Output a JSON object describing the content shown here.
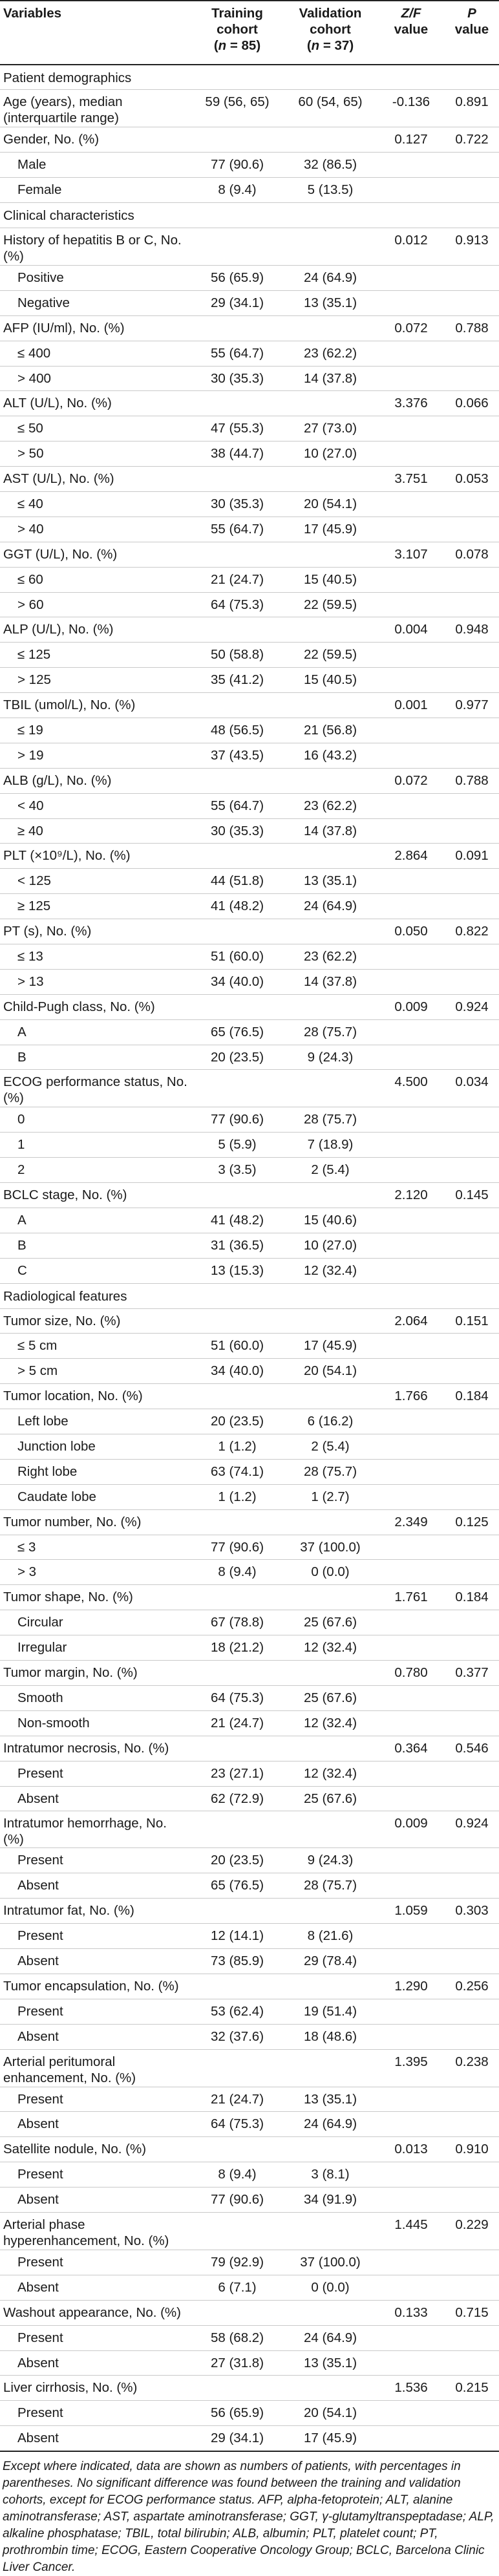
{
  "header": {
    "variables": "Variables",
    "training": [
      "Training",
      "cohort",
      "(n = 85)"
    ],
    "validation": [
      "Validation",
      "cohort",
      "(n = 37)"
    ],
    "zf": [
      "Z/F",
      "value"
    ],
    "p": [
      "P",
      "value"
    ]
  },
  "rows": [
    {
      "k": "sec",
      "label": "Patient demographics"
    },
    {
      "k": "var",
      "label": "Age (years), median (interquartile range)",
      "t": "59 (56, 65)",
      "v": "60 (54, 65)",
      "z": "-0.136",
      "p": "0.891",
      "tall": true
    },
    {
      "k": "var",
      "label": "Gender, No. (%)",
      "z": "0.127",
      "p": "0.722"
    },
    {
      "k": "sub",
      "label": "Male",
      "t": "77 (90.6)",
      "v": "32 (86.5)"
    },
    {
      "k": "sub",
      "label": "Female",
      "t": "8 (9.4)",
      "v": "5 (13.5)"
    },
    {
      "k": "sec",
      "label": "Clinical characteristics"
    },
    {
      "k": "var",
      "label": "History of hepatitis B or C, No. (%)",
      "z": "0.012",
      "p": "0.913",
      "tall": true
    },
    {
      "k": "sub",
      "label": "Positive",
      "t": "56 (65.9)",
      "v": "24 (64.9)"
    },
    {
      "k": "sub",
      "label": "Negative",
      "t": "29 (34.1)",
      "v": "13 (35.1)"
    },
    {
      "k": "var",
      "label": "AFP (IU/ml), No. (%)",
      "z": "0.072",
      "p": "0.788"
    },
    {
      "k": "sub",
      "label": "≤ 400",
      "t": "55 (64.7)",
      "v": "23 (62.2)"
    },
    {
      "k": "sub",
      "label": "> 400",
      "t": "30 (35.3)",
      "v": "14 (37.8)"
    },
    {
      "k": "var",
      "label": "ALT (U/L), No. (%)",
      "z": "3.376",
      "p": "0.066"
    },
    {
      "k": "sub",
      "label": "≤ 50",
      "t": "47 (55.3)",
      "v": "27 (73.0)"
    },
    {
      "k": "sub",
      "label": "> 50",
      "t": "38 (44.7)",
      "v": "10 (27.0)"
    },
    {
      "k": "var",
      "label": "AST (U/L), No. (%)",
      "z": "3.751",
      "p": "0.053"
    },
    {
      "k": "sub",
      "label": "≤ 40",
      "t": "30 (35.3)",
      "v": "20 (54.1)"
    },
    {
      "k": "sub",
      "label": "> 40",
      "t": "55 (64.7)",
      "v": "17 (45.9)"
    },
    {
      "k": "var",
      "label": "GGT (U/L), No. (%)",
      "z": "3.107",
      "p": "0.078"
    },
    {
      "k": "sub",
      "label": "≤ 60",
      "t": "21 (24.7)",
      "v": "15 (40.5)"
    },
    {
      "k": "sub",
      "label": "> 60",
      "t": "64 (75.3)",
      "v": "22 (59.5)"
    },
    {
      "k": "var",
      "label": "ALP (U/L), No. (%)",
      "z": "0.004",
      "p": "0.948"
    },
    {
      "k": "sub",
      "label": "≤ 125",
      "t": "50 (58.8)",
      "v": "22 (59.5)"
    },
    {
      "k": "sub",
      "label": "> 125",
      "t": "35 (41.2)",
      "v": "15 (40.5)"
    },
    {
      "k": "var",
      "label": "TBIL (umol/L), No. (%)",
      "z": "0.001",
      "p": "0.977"
    },
    {
      "k": "sub",
      "label": "≤ 19",
      "t": "48 (56.5)",
      "v": "21 (56.8)"
    },
    {
      "k": "sub",
      "label": "> 19",
      "t": "37 (43.5)",
      "v": "16 (43.2)"
    },
    {
      "k": "var",
      "label": "ALB (g/L), No. (%)",
      "z": "0.072",
      "p": "0.788"
    },
    {
      "k": "sub",
      "label": "< 40",
      "t": "55 (64.7)",
      "v": "23 (62.2)"
    },
    {
      "k": "sub",
      "label": "≥ 40",
      "t": "30 (35.3)",
      "v": "14 (37.8)"
    },
    {
      "k": "var",
      "label": "PLT (×10⁹/L), No. (%)",
      "z": "2.864",
      "p": "0.091"
    },
    {
      "k": "sub",
      "label": "< 125",
      "t": "44 (51.8)",
      "v": "13 (35.1)"
    },
    {
      "k": "sub",
      "label": "≥ 125",
      "t": "41 (48.2)",
      "v": "24 (64.9)"
    },
    {
      "k": "var",
      "label": "PT (s), No. (%)",
      "z": "0.050",
      "p": "0.822"
    },
    {
      "k": "sub",
      "label": "≤ 13",
      "t": "51 (60.0)",
      "v": "23 (62.2)"
    },
    {
      "k": "sub",
      "label": "> 13",
      "t": "34 (40.0)",
      "v": "14 (37.8)"
    },
    {
      "k": "var",
      "label": "Child-Pugh class, No. (%)",
      "z": "0.009",
      "p": "0.924"
    },
    {
      "k": "sub",
      "label": "A",
      "t": "65 (76.5)",
      "v": "28 (75.7)"
    },
    {
      "k": "sub",
      "label": "B",
      "t": "20 (23.5)",
      "v": "9 (24.3)"
    },
    {
      "k": "var",
      "label": "ECOG performance status, No. (%)",
      "z": "4.500",
      "p": "0.034",
      "tall": true
    },
    {
      "k": "sub",
      "label": "0",
      "t": "77 (90.6)",
      "v": "28 (75.7)"
    },
    {
      "k": "sub",
      "label": "1",
      "t": "5 (5.9)",
      "v": "7 (18.9)"
    },
    {
      "k": "sub",
      "label": "2",
      "t": "3 (3.5)",
      "v": "2 (5.4)"
    },
    {
      "k": "var",
      "label": "BCLC stage, No. (%)",
      "z": "2.120",
      "p": "0.145"
    },
    {
      "k": "sub",
      "label": "A",
      "t": "41 (48.2)",
      "v": "15 (40.6)"
    },
    {
      "k": "sub",
      "label": "B",
      "t": "31 (36.5)",
      "v": "10 (27.0)"
    },
    {
      "k": "sub",
      "label": "C",
      "t": "13 (15.3)",
      "v": "12 (32.4)"
    },
    {
      "k": "sec",
      "label": "Radiological features"
    },
    {
      "k": "var",
      "label": "Tumor size, No. (%)",
      "z": "2.064",
      "p": "0.151"
    },
    {
      "k": "sub",
      "label": "≤ 5 cm",
      "t": "51 (60.0)",
      "v": "17 (45.9)"
    },
    {
      "k": "sub",
      "label": "> 5 cm",
      "t": "34 (40.0)",
      "v": "20 (54.1)"
    },
    {
      "k": "var",
      "label": "Tumor location, No. (%)",
      "z": "1.766",
      "p": "0.184"
    },
    {
      "k": "sub",
      "label": "Left lobe",
      "t": "20 (23.5)",
      "v": "6 (16.2)"
    },
    {
      "k": "sub",
      "label": "Junction lobe",
      "t": "1 (1.2)",
      "v": "2 (5.4)"
    },
    {
      "k": "sub",
      "label": "Right lobe",
      "t": "63 (74.1)",
      "v": "28 (75.7)"
    },
    {
      "k": "sub",
      "label": "Caudate lobe",
      "t": "1 (1.2)",
      "v": "1 (2.7)"
    },
    {
      "k": "var",
      "label": "Tumor number, No. (%)",
      "z": "2.349",
      "p": "0.125"
    },
    {
      "k": "sub",
      "label": "≤ 3",
      "t": "77 (90.6)",
      "v": "37 (100.0)"
    },
    {
      "k": "sub",
      "label": "> 3",
      "t": "8 (9.4)",
      "v": "0 (0.0)"
    },
    {
      "k": "var",
      "label": "Tumor shape, No. (%)",
      "z": "1.761",
      "p": "0.184"
    },
    {
      "k": "sub",
      "label": "Circular",
      "t": "67 (78.8)",
      "v": "25 (67.6)"
    },
    {
      "k": "sub",
      "label": "Irregular",
      "t": "18 (21.2)",
      "v": "12 (32.4)"
    },
    {
      "k": "var",
      "label": "Tumor margin, No. (%)",
      "z": "0.780",
      "p": "0.377"
    },
    {
      "k": "sub",
      "label": "Smooth",
      "t": "64 (75.3)",
      "v": "25 (67.6)"
    },
    {
      "k": "sub",
      "label": "Non-smooth",
      "t": "21 (24.7)",
      "v": "12 (32.4)"
    },
    {
      "k": "var",
      "label": "Intratumor necrosis, No. (%)",
      "z": "0.364",
      "p": "0.546"
    },
    {
      "k": "sub",
      "label": "Present",
      "t": "23 (27.1)",
      "v": "12 (32.4)"
    },
    {
      "k": "sub",
      "label": "Absent",
      "t": "62 (72.9)",
      "v": "25 (67.6)"
    },
    {
      "k": "var",
      "label": "Intratumor hemorrhage, No. (%)",
      "z": "0.009",
      "p": "0.924"
    },
    {
      "k": "sub",
      "label": "Present",
      "t": "20 (23.5)",
      "v": "9 (24.3)"
    },
    {
      "k": "sub",
      "label": "Absent",
      "t": "65 (76.5)",
      "v": "28 (75.7)"
    },
    {
      "k": "var",
      "label": "Intratumor fat, No. (%)",
      "z": "1.059",
      "p": "0.303"
    },
    {
      "k": "sub",
      "label": "Present",
      "t": "12 (14.1)",
      "v": "8 (21.6)"
    },
    {
      "k": "sub",
      "label": "Absent",
      "t": "73 (85.9)",
      "v": "29 (78.4)"
    },
    {
      "k": "var",
      "label": "Tumor encapsulation, No. (%)",
      "z": "1.290",
      "p": "0.256"
    },
    {
      "k": "sub",
      "label": "Present",
      "t": "53 (62.4)",
      "v": "19 (51.4)"
    },
    {
      "k": "sub",
      "label": "Absent",
      "t": "32 (37.6)",
      "v": "18 (48.6)"
    },
    {
      "k": "var",
      "label": "Arterial peritumoral enhancement, No. (%)",
      "z": "1.395",
      "p": "0.238",
      "tall": true
    },
    {
      "k": "sub",
      "label": "Present",
      "t": "21 (24.7)",
      "v": "13 (35.1)"
    },
    {
      "k": "sub",
      "label": "Absent",
      "t": "64 (75.3)",
      "v": "24 (64.9)"
    },
    {
      "k": "var",
      "label": "Satellite nodule, No. (%)",
      "z": "0.013",
      "p": "0.910"
    },
    {
      "k": "sub",
      "label": "Present",
      "t": "8 (9.4)",
      "v": "3 (8.1)"
    },
    {
      "k": "sub",
      "label": "Absent",
      "t": "77 (90.6)",
      "v": "34 (91.9)"
    },
    {
      "k": "var",
      "label": "Arterial phase hyperenhancement, No. (%)",
      "z": "1.445",
      "p": "0.229",
      "tall": true
    },
    {
      "k": "sub",
      "label": "Present",
      "t": "79 (92.9)",
      "v": "37 (100.0)"
    },
    {
      "k": "sub",
      "label": "Absent",
      "t": "6 (7.1)",
      "v": "0 (0.0)"
    },
    {
      "k": "var",
      "label": "Washout appearance, No. (%)",
      "z": "0.133",
      "p": "0.715"
    },
    {
      "k": "sub",
      "label": "Present",
      "t": "58 (68.2)",
      "v": "24 (64.9)"
    },
    {
      "k": "sub",
      "label": "Absent",
      "t": "27 (31.8)",
      "v": "13 (35.1)"
    },
    {
      "k": "var",
      "label": "Liver cirrhosis, No. (%)",
      "z": "1.536",
      "p": "0.215"
    },
    {
      "k": "sub",
      "label": "Present",
      "t": "56 (65.9)",
      "v": "20 (54.1)"
    },
    {
      "k": "sub",
      "label": "Absent",
      "t": "29 (34.1)",
      "v": "17 (45.9)"
    }
  ],
  "footnote": "Except where indicated, data are shown as numbers of patients, with percentages in parentheses. No significant difference was found between the training and validation cohorts, except for ECOG performance status. AFP, alpha-fetoprotein; ALT, alanine aminotransferase; AST, aspartate aminotransferase; GGT, γ-glutamyltranspeptadase; ALP, alkaline phosphatase; TBIL, total bilirubin; ALB, albumin; PLT, platelet count; PT, prothrombin time; ECOG, Eastern Cooperative Oncology Group; BCLC, Barcelona Clinic Liver Cancer."
}
